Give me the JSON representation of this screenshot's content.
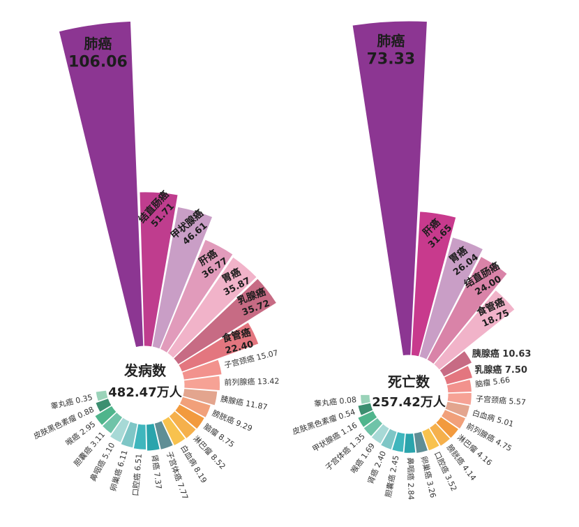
{
  "chart_data": [
    {
      "type": "nightingale-rose",
      "title": "发病数",
      "total": "482.47万人",
      "items": [
        {
          "name": "肺癌",
          "value": 106.06,
          "display": "106.06",
          "color": "#8c3692",
          "label": "inside-big"
        },
        {
          "name": "结直肠癌",
          "value": 51.71,
          "display": "51.71",
          "color": "#bf3d8e",
          "label": "inside"
        },
        {
          "name": "甲状腺癌",
          "value": 46.61,
          "display": "46.61",
          "color": "#c99ec6",
          "label": "inside"
        },
        {
          "name": "肝癌",
          "value": 36.77,
          "display": "36.77",
          "color": "#e19bbb",
          "label": "inside"
        },
        {
          "name": "胃癌",
          "value": 35.87,
          "display": "35.87",
          "color": "#f1b3c9",
          "label": "inside"
        },
        {
          "name": "乳腺癌",
          "value": 35.72,
          "display": "35.72",
          "color": "#c76b84",
          "label": "inside"
        },
        {
          "name": "食管癌",
          "value": 22.4,
          "display": "22.40",
          "color": "#e3767f",
          "label": "inside"
        },
        {
          "name": "子宫颈癌",
          "value": 15.07,
          "display": "15.07",
          "color": "#f2928d",
          "label": "outside"
        },
        {
          "name": "前列腺癌",
          "value": 13.42,
          "display": "13.42",
          "color": "#f6a295",
          "label": "outside"
        },
        {
          "name": "胰腺癌",
          "value": 11.87,
          "display": "11.87",
          "color": "#e3a58e",
          "label": "outside"
        },
        {
          "name": "膀胱癌",
          "value": 9.29,
          "display": "9.29",
          "color": "#f1a07a",
          "label": "outside"
        },
        {
          "name": "脑瘤",
          "value": 8.75,
          "display": "8.75",
          "color": "#f29a3e",
          "label": "outside"
        },
        {
          "name": "淋巴瘤",
          "value": 8.52,
          "display": "8.52",
          "color": "#f5b04c",
          "label": "outside"
        },
        {
          "name": "白血病",
          "value": 8.19,
          "display": "8.19",
          "color": "#f8c24e",
          "label": "outside"
        },
        {
          "name": "子宫体癌",
          "value": 7.77,
          "display": "7.77",
          "color": "#5f8e95",
          "label": "outside"
        },
        {
          "name": "肾癌",
          "value": 7.37,
          "display": "7.37",
          "color": "#2aa4ac",
          "label": "outside"
        },
        {
          "name": "口腔癌",
          "value": 6.51,
          "display": "6.51",
          "color": "#3fb6bd",
          "label": "outside"
        },
        {
          "name": "卵巢癌",
          "value": 6.11,
          "display": "6.11",
          "color": "#7ec6c6",
          "label": "outside"
        },
        {
          "name": "鼻咽癌",
          "value": 5.1,
          "display": "5.10",
          "color": "#a7d9d6",
          "label": "outside"
        },
        {
          "name": "胆囊癌",
          "value": 3.11,
          "display": "3.11",
          "color": "#6fc3a8",
          "label": "outside"
        },
        {
          "name": "喉癌",
          "value": 2.95,
          "display": "2.95",
          "color": "#4fb58c",
          "label": "outside"
        },
        {
          "name": "皮肤黑色素瘤",
          "value": 0.88,
          "display": "0.88",
          "color": "#3c8f70",
          "label": "outside"
        },
        {
          "name": "睾丸癌",
          "value": 0.35,
          "display": "0.35",
          "color": "#9ad3b9",
          "label": "outside"
        }
      ]
    },
    {
      "type": "nightingale-rose",
      "title": "死亡数",
      "total": "257.42万人",
      "items": [
        {
          "name": "肺癌",
          "value": 73.33,
          "display": "73.33",
          "color": "#8c3692",
          "label": "inside-big"
        },
        {
          "name": "肝癌",
          "value": 31.65,
          "display": "31.65",
          "color": "#c83a8d",
          "label": "inside"
        },
        {
          "name": "胃癌",
          "value": 26.04,
          "display": "26.04",
          "color": "#c99ec6",
          "label": "inside"
        },
        {
          "name": "结直肠癌",
          "value": 24.0,
          "display": "24.00",
          "color": "#d983a8",
          "label": "inside"
        },
        {
          "name": "食管癌",
          "value": 18.75,
          "display": "18.75",
          "color": "#f1b3c9",
          "label": "inside"
        },
        {
          "name": "胰腺癌",
          "value": 10.63,
          "display": "10.63",
          "color": "#c76b84",
          "label": "outside-inline"
        },
        {
          "name": "乳腺癌",
          "value": 7.5,
          "display": "7.50",
          "color": "#e3767f",
          "label": "outside-inline"
        },
        {
          "name": "脑瘤",
          "value": 5.66,
          "display": "5.66",
          "color": "#f2928d",
          "label": "outside"
        },
        {
          "name": "子宫颈癌",
          "value": 5.57,
          "display": "5.57",
          "color": "#f6a295",
          "label": "outside"
        },
        {
          "name": "白血病",
          "value": 5.01,
          "display": "5.01",
          "color": "#e3a58e",
          "label": "outside"
        },
        {
          "name": "前列腺癌",
          "value": 4.75,
          "display": "4.75",
          "color": "#f1a07a",
          "label": "outside"
        },
        {
          "name": "淋巴瘤",
          "value": 4.16,
          "display": "4.16",
          "color": "#f29a3e",
          "label": "outside"
        },
        {
          "name": "膀胱癌",
          "value": 4.14,
          "display": "4.14",
          "color": "#f5b04c",
          "label": "outside"
        },
        {
          "name": "口腔癌",
          "value": 3.52,
          "display": "3.52",
          "color": "#f8c24e",
          "label": "outside"
        },
        {
          "name": "卵巢癌",
          "value": 3.26,
          "display": "3.26",
          "color": "#5f8e95",
          "label": "outside"
        },
        {
          "name": "鼻咽癌",
          "value": 2.84,
          "display": "2.84",
          "color": "#2aa4ac",
          "label": "outside"
        },
        {
          "name": "胆囊癌",
          "value": 2.45,
          "display": "2.45",
          "color": "#3fb6bd",
          "label": "outside"
        },
        {
          "name": "肾癌",
          "value": 2.4,
          "display": "2.40",
          "color": "#7ec6c6",
          "label": "outside"
        },
        {
          "name": "喉癌",
          "value": 1.69,
          "display": "1.69",
          "color": "#a7d9d6",
          "label": "outside"
        },
        {
          "name": "子宫体癌",
          "value": 1.35,
          "display": "1.35",
          "color": "#6fc3a8",
          "label": "outside"
        },
        {
          "name": "甲状腺癌",
          "value": 1.16,
          "display": "1.16",
          "color": "#4fb58c",
          "label": "outside"
        },
        {
          "name": "皮肤黑色素瘤",
          "value": 0.54,
          "display": "0.54",
          "color": "#3c8f70",
          "label": "outside"
        },
        {
          "name": "睾丸癌",
          "value": 0.08,
          "display": "0.08",
          "color": "#9ad3b9",
          "label": "outside"
        }
      ]
    }
  ]
}
